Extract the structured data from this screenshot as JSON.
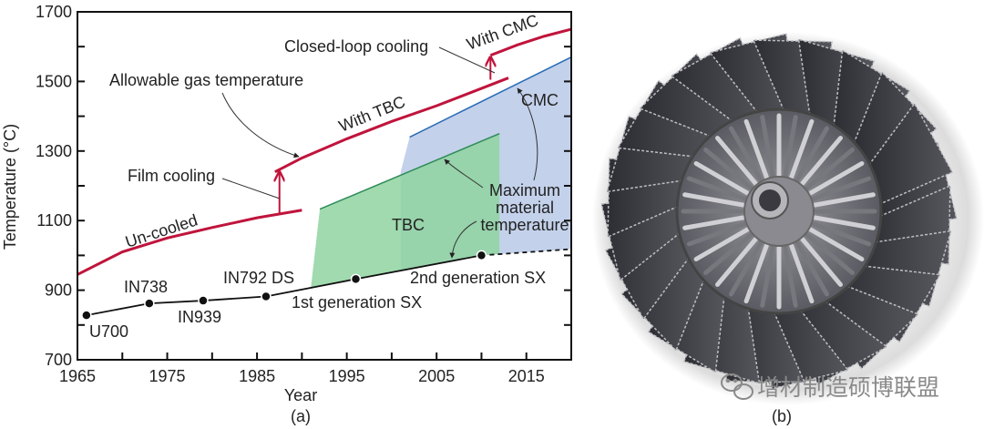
{
  "chart_data": {
    "type": "line",
    "xlabel": "Year",
    "ylabel": "Temperature (°C)",
    "xlim": [
      1965,
      2020
    ],
    "ylim": [
      700,
      1700
    ],
    "xticks": [
      "1965",
      "1975",
      "1985",
      "1995",
      "2005",
      "2015"
    ],
    "yticks": [
      "700",
      "900",
      "1100",
      "1300",
      "1500",
      "1700"
    ],
    "panel_label": "(a)",
    "grid": false,
    "series": [
      {
        "name": "Un-cooled",
        "color": "#c0143c",
        "x": [
          1965,
          1970,
          1975,
          1980,
          1985,
          1990
        ],
        "y": [
          945,
          1010,
          1050,
          1080,
          1108,
          1130
        ]
      },
      {
        "name": "With TBC",
        "color": "#c0143c",
        "x": [
          1987,
          1990,
          1995,
          2000,
          2005,
          2010,
          2013
        ],
        "y": [
          1240,
          1280,
          1335,
          1385,
          1430,
          1480,
          1510
        ]
      },
      {
        "name": "With CMC",
        "color": "#c0143c",
        "x": [
          2011,
          2014,
          2017,
          2020
        ],
        "y": [
          1575,
          1605,
          1630,
          1650
        ]
      },
      {
        "name": "Maximum material temperature",
        "color": "#111111",
        "x": [
          1966,
          1973,
          1979,
          1986,
          1996,
          2010
        ],
        "y": [
          828,
          862,
          870,
          882,
          932,
          1000
        ],
        "points": [
          "U700",
          "IN738",
          "IN939",
          "IN792 DS",
          "1st generation SX",
          "2nd generation SX"
        ],
        "dashed_extension": {
          "x": [
            2010,
            2020
          ],
          "y": [
            1000,
            1018
          ]
        }
      }
    ],
    "jumps": [
      {
        "label": "Film cooling",
        "x": 1987.5,
        "from": 1118,
        "to": 1240
      },
      {
        "label": "Closed-loop cooling",
        "x": 2011,
        "from": 1505,
        "to": 1570
      }
    ],
    "regions": [
      {
        "name": "TBC",
        "color": "#8fd3a0",
        "edge": "#2e8b57",
        "top": {
          "x": [
            1992,
            2012
          ],
          "y": [
            1133,
            1350
          ]
        },
        "x_start": 1991,
        "x_end": 2012
      },
      {
        "name": "CMC",
        "color": "#b9c9e8",
        "edge": "#2a6bb5",
        "top": {
          "x": [
            2002,
            2020
          ],
          "y": [
            1340,
            1570
          ]
        },
        "x_start": 2001,
        "x_end": 2020
      }
    ],
    "annotations": {
      "allowable": "Allowable gas temperature",
      "film": "Film cooling",
      "closed": "Closed-loop cooling",
      "uncooled": "Un-cooled",
      "with_tbc": "With TBC",
      "with_cmc": "With CMC",
      "tbc": "TBC",
      "cmc": "CMC",
      "max1": "Maximum",
      "max2": "material",
      "max3": "temperature",
      "u700": "U700",
      "in738": "IN738",
      "in939": "IN939",
      "in792": "IN792 DS",
      "sx1": "1st generation SX",
      "sx2": "2nd generation SX"
    }
  },
  "photo": {
    "panel_label": "(b)",
    "watermark": "增材制造硕博联盟",
    "watermark_icon": "wechat-icon"
  }
}
